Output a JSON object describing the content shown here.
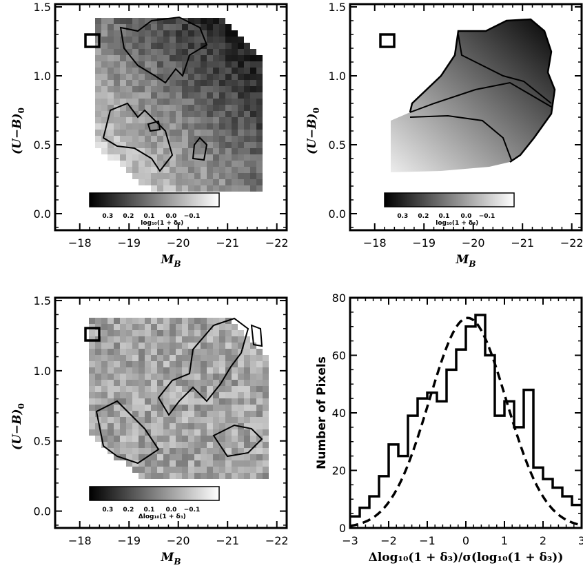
{
  "chart_data": [
    {
      "type": "heatmap",
      "panel": "top-left",
      "xlabel": "M_B",
      "ylabel": "(U−B)_0",
      "xlim": [
        -17.5,
        -22.2
      ],
      "ylim": [
        -0.12,
        1.52
      ],
      "xticks": [
        "−18",
        "−19",
        "−20",
        "−21",
        "−22"
      ],
      "yticks": [
        "0.0",
        "0.5",
        "1.0",
        "1.5"
      ],
      "colorbar": {
        "ticks": [
          "0.3",
          "0.2",
          "0.1",
          "0.0",
          "−0.1"
        ],
        "label": "log₁₀(1 + δ₃)"
      },
      "cell_size_legend": true
    },
    {
      "type": "heatmap",
      "panel": "top-right",
      "xlabel": "M_B",
      "ylabel": "(U−B)_0",
      "xlim": [
        -17.5,
        -22.2
      ],
      "ylim": [
        -0.12,
        1.52
      ],
      "xticks": [
        "−18",
        "−19",
        "−20",
        "−21",
        "−22"
      ],
      "yticks": [
        "0.0",
        "0.5",
        "1.0",
        "1.5"
      ],
      "colorbar": {
        "ticks": [
          "0.3",
          "0.2",
          "0.1",
          "0.0",
          "−0.1"
        ],
        "label": "log₁₀(1 + δ₃)"
      },
      "cell_size_legend": true
    },
    {
      "type": "heatmap",
      "panel": "bottom-left",
      "xlabel": "M_B",
      "ylabel": "(U−B)_0",
      "xlim": [
        -17.5,
        -22.2
      ],
      "ylim": [
        -0.12,
        1.52
      ],
      "xticks": [
        "−18",
        "−19",
        "−20",
        "−21",
        "−22"
      ],
      "yticks": [
        "0.0",
        "0.5",
        "1.0",
        "1.5"
      ],
      "colorbar": {
        "ticks": [
          "0.3",
          "0.2",
          "0.1",
          "0.0",
          "−0.1"
        ],
        "label": "Δlog₁₀(1 + δ₃)"
      },
      "cell_size_legend": true
    },
    {
      "type": "bar",
      "panel": "bottom-right",
      "style": "step-histogram",
      "xlabel": "Δlog₁₀(1 + δ₃)/σ(log₁₀(1 + δ₃))",
      "ylabel": "Number of Pixels",
      "xlim": [
        -3,
        3
      ],
      "ylim": [
        0,
        80
      ],
      "xticks": [
        "−3",
        "−2",
        "−1",
        "0",
        "1",
        "2",
        "3"
      ],
      "yticks": [
        "0",
        "20",
        "40",
        "60",
        "80"
      ],
      "bins": {
        "edges": [
          -3.0,
          -2.75,
          -2.5,
          -2.25,
          -2.0,
          -1.75,
          -1.5,
          -1.25,
          -1.0,
          -0.75,
          -0.5,
          -0.25,
          0.0,
          0.25,
          0.5,
          0.75,
          1.0,
          1.25,
          1.5,
          1.75,
          2.0,
          2.25,
          2.5,
          2.75,
          3.0
        ],
        "counts": [
          4,
          7,
          11,
          18,
          29,
          25,
          39,
          45,
          47,
          44,
          55,
          62,
          70,
          74,
          60,
          39,
          44,
          35,
          48,
          21,
          17,
          14,
          11,
          8
        ]
      },
      "gaussian_fit": {
        "amplitude": 73,
        "mean": 0.05,
        "sigma": 1.0,
        "style": "dashed"
      }
    }
  ]
}
